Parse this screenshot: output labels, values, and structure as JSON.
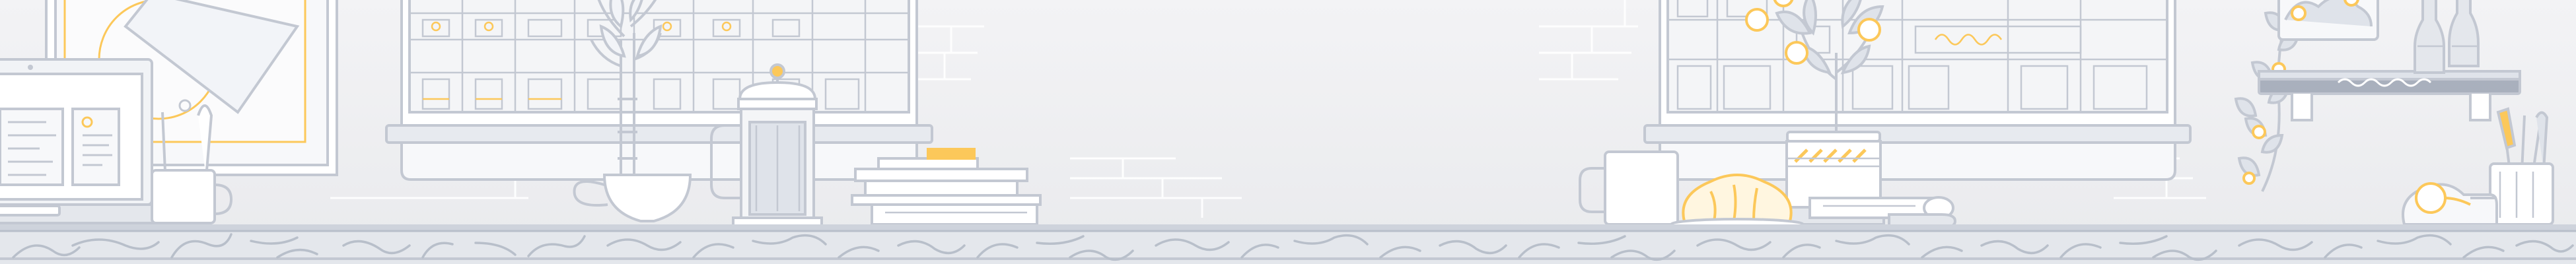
{
  "scene": {
    "description_visible_text": [],
    "colors": {
      "background": "#ededef",
      "background_top": "#f3f3f5",
      "stroke": "#c3c8d2",
      "stroke_dark": "#a9b0bd",
      "fill_light": "#f7f8fa",
      "fill_mid": "#dfe3ea",
      "accent": "#fcc85a",
      "counter": "#e4e7ec"
    },
    "icons": [
      "picture-frame-icon",
      "laptop-icon",
      "pencil-cup-icon",
      "window-icon",
      "plant-vase-icon",
      "tea-cup-icon",
      "french-press-icon",
      "book-stack-icon",
      "mug-icon",
      "croissant-icon",
      "potted-plant-icon",
      "rolled-paper-icon",
      "hanging-plant-icon",
      "wall-shelf-icon",
      "bottle-icon",
      "tape-dispenser-icon"
    ]
  }
}
